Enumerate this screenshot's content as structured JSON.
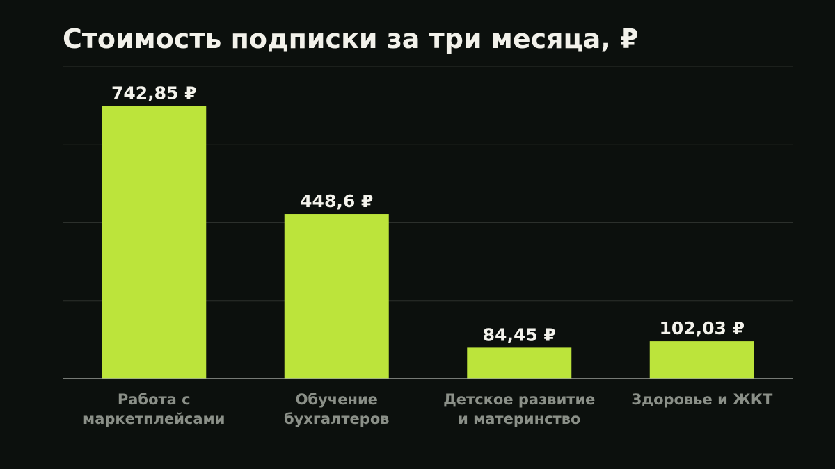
{
  "chart_data": {
    "type": "bar",
    "title": "Стоимость подписки за три месяца, ₽",
    "xlabel": "",
    "ylabel": "",
    "categories": [
      [
        "Работа с",
        "маркетплейсами"
      ],
      [
        "Обучение",
        "бухгалтеров"
      ],
      [
        "Детское развитие",
        "и материнство"
      ],
      [
        "Здоровье и ЖКТ"
      ]
    ],
    "values": [
      742.85,
      448.6,
      84.45,
      102.03
    ],
    "value_labels": [
      "742,85 ₽",
      "448,6 ₽",
      "84,45 ₽",
      "102,03 ₽"
    ],
    "ylim": [
      0,
      850
    ],
    "gridlines": [
      0,
      212.5,
      425,
      637.5,
      850
    ],
    "grid": true,
    "legend": "none",
    "colors": {
      "background": "#0c100d",
      "bar": "#bce43b",
      "grid": "#2c302c",
      "baseline": "#9a9e98",
      "title": "#f2f1ea",
      "value_label": "#f4f3ec",
      "category_label": "#8b9088"
    }
  }
}
